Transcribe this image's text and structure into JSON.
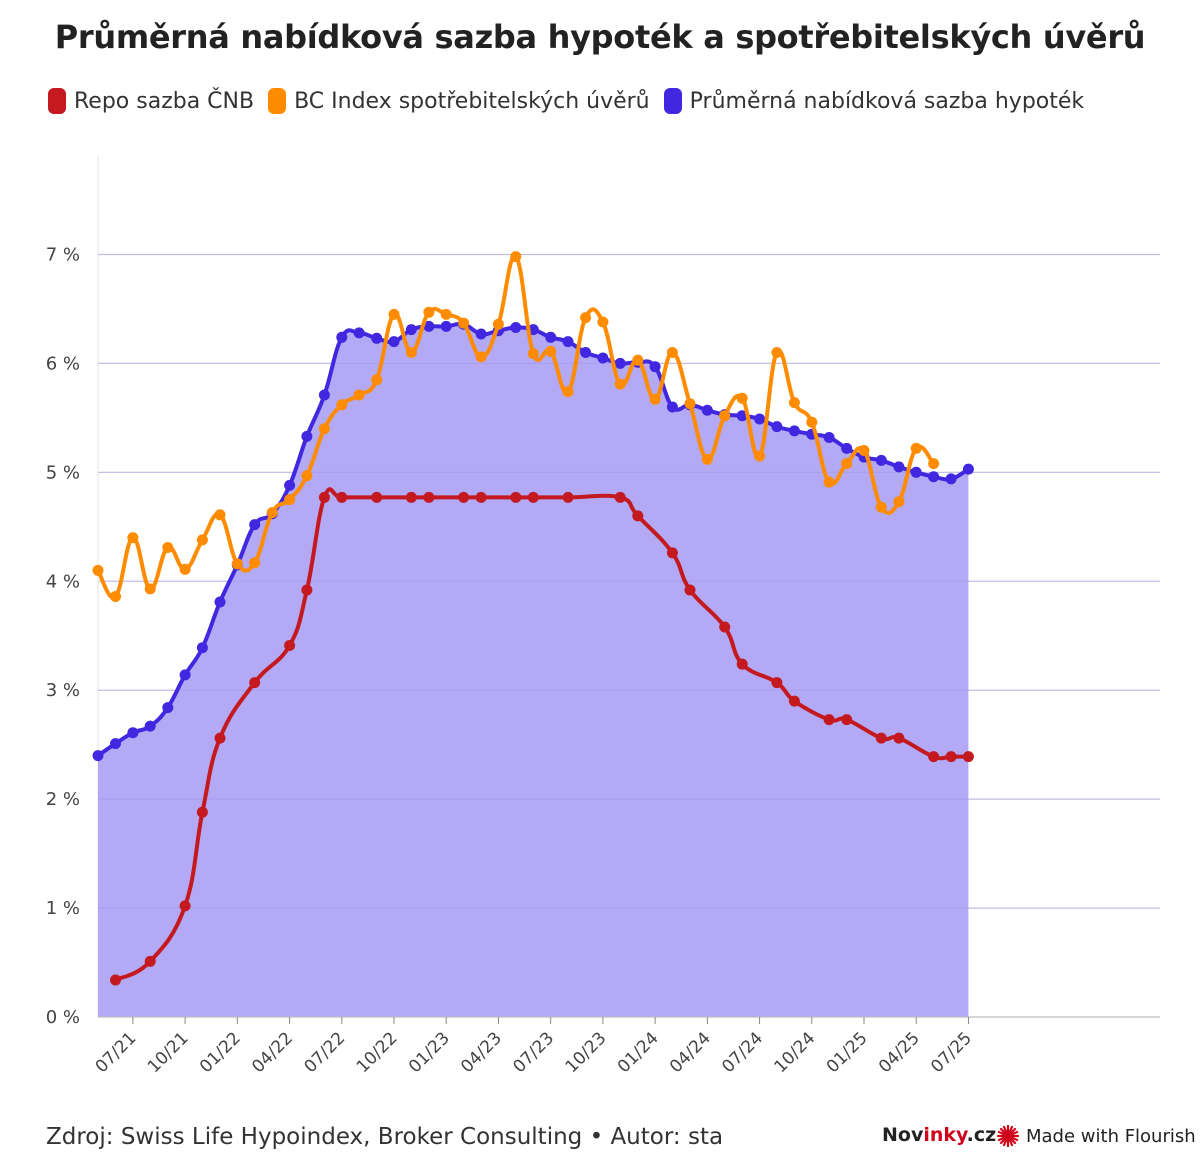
{
  "title": "Průměrná nabídková sazba hypoték a spotřebitelských úvěrů",
  "legend": [
    {
      "label": "Repo sazba ČNB",
      "color": "#c4191f"
    },
    {
      "label": "BC Index spotřebitelských úvěrů",
      "color": "#ff8c00"
    },
    {
      "label": "Průměrná nabídková sazba hypoték",
      "color": "#4127e0"
    }
  ],
  "footer": {
    "source": "Zdroj: Swiss Life Hypoindex, Broker Consulting • Autor: sta",
    "brand_prefix": "Nov",
    "brand_accent": "inky",
    "brand_suffix": ".cz",
    "flourish": "Made with Flourish"
  },
  "chart_data": {
    "type": "line",
    "title": "Průměrná nabídková sazba hypoték a spotřebitelských úvěrů",
    "xlabel": "",
    "ylabel": "",
    "x_range": [
      2021.333,
      2026.417
    ],
    "ylim": [
      0,
      7.5
    ],
    "y_ticks": [
      {
        "value": 0,
        "label": "0 %"
      },
      {
        "value": 1,
        "label": "1 %"
      },
      {
        "value": 2,
        "label": "2 %"
      },
      {
        "value": 3,
        "label": "3 %"
      },
      {
        "value": 4,
        "label": "4 %"
      },
      {
        "value": 5,
        "label": "5 %"
      },
      {
        "value": 6,
        "label": "6 %"
      },
      {
        "value": 7,
        "label": "7 %"
      }
    ],
    "x_ticks": [
      {
        "value": 2021.5,
        "label": "07/21"
      },
      {
        "value": 2021.75,
        "label": "10/21"
      },
      {
        "value": 2022.0,
        "label": "01/22"
      },
      {
        "value": 2022.25,
        "label": "04/22"
      },
      {
        "value": 2022.5,
        "label": "07/22"
      },
      {
        "value": 2022.75,
        "label": "10/22"
      },
      {
        "value": 2023.0,
        "label": "01/23"
      },
      {
        "value": 2023.25,
        "label": "04/23"
      },
      {
        "value": 2023.5,
        "label": "07/23"
      },
      {
        "value": 2023.75,
        "label": "10/23"
      },
      {
        "value": 2024.0,
        "label": "01/24"
      },
      {
        "value": 2024.25,
        "label": "04/24"
      },
      {
        "value": 2024.5,
        "label": "07/24"
      },
      {
        "value": 2024.75,
        "label": "10/24"
      },
      {
        "value": 2025.0,
        "label": "01/25"
      },
      {
        "value": 2025.25,
        "label": "04/25"
      },
      {
        "value": 2025.5,
        "label": "07/25"
      }
    ],
    "series": [
      {
        "name": "Průměrná nabídková sazba hypoték",
        "color": "#4127e0",
        "fill": "#b3a9f5",
        "points": [
          [
            2021.333,
            2.4
          ],
          [
            2021.417,
            2.51
          ],
          [
            2021.5,
            2.61
          ],
          [
            2021.583,
            2.67
          ],
          [
            2021.667,
            2.84
          ],
          [
            2021.75,
            3.14
          ],
          [
            2021.833,
            3.39
          ],
          [
            2021.917,
            3.81
          ],
          [
            2022.0,
            4.15
          ],
          [
            2022.083,
            4.52
          ],
          [
            2022.167,
            4.62
          ],
          [
            2022.25,
            4.88
          ],
          [
            2022.333,
            5.33
          ],
          [
            2022.417,
            5.71
          ],
          [
            2022.5,
            6.24
          ],
          [
            2022.583,
            6.28
          ],
          [
            2022.667,
            6.23
          ],
          [
            2022.75,
            6.2
          ],
          [
            2022.833,
            6.31
          ],
          [
            2022.917,
            6.34
          ],
          [
            2023.0,
            6.34
          ],
          [
            2023.083,
            6.36
          ],
          [
            2023.167,
            6.27
          ],
          [
            2023.25,
            6.3
          ],
          [
            2023.333,
            6.33
          ],
          [
            2023.417,
            6.31
          ],
          [
            2023.5,
            6.24
          ],
          [
            2023.583,
            6.2
          ],
          [
            2023.667,
            6.1
          ],
          [
            2023.75,
            6.05
          ],
          [
            2023.833,
            6.0
          ],
          [
            2023.917,
            6.01
          ],
          [
            2024.0,
            5.97
          ],
          [
            2024.083,
            5.6
          ],
          [
            2024.167,
            5.62
          ],
          [
            2024.25,
            5.57
          ],
          [
            2024.333,
            5.53
          ],
          [
            2024.417,
            5.52
          ],
          [
            2024.5,
            5.49
          ],
          [
            2024.583,
            5.42
          ],
          [
            2024.667,
            5.38
          ],
          [
            2024.75,
            5.35
          ],
          [
            2024.833,
            5.32
          ],
          [
            2024.917,
            5.22
          ],
          [
            2025.0,
            5.14
          ],
          [
            2025.083,
            5.11
          ],
          [
            2025.167,
            5.05
          ],
          [
            2025.25,
            5.0
          ],
          [
            2025.333,
            4.96
          ],
          [
            2025.417,
            4.94
          ],
          [
            2025.5,
            5.03
          ]
        ]
      },
      {
        "name": "BC Index spotřebitelských úvěrů",
        "color": "#ff8c00",
        "points": [
          [
            2021.333,
            4.1
          ],
          [
            2021.417,
            3.86
          ],
          [
            2021.5,
            4.4
          ],
          [
            2021.583,
            3.93
          ],
          [
            2021.667,
            4.31
          ],
          [
            2021.75,
            4.11
          ],
          [
            2021.833,
            4.38
          ],
          [
            2021.917,
            4.61
          ],
          [
            2022.0,
            4.16
          ],
          [
            2022.083,
            4.17
          ],
          [
            2022.167,
            4.63
          ],
          [
            2022.25,
            4.75
          ],
          [
            2022.333,
            4.97
          ],
          [
            2022.417,
            5.4
          ],
          [
            2022.5,
            5.62
          ],
          [
            2022.583,
            5.71
          ],
          [
            2022.667,
            5.85
          ],
          [
            2022.75,
            6.45
          ],
          [
            2022.833,
            6.1
          ],
          [
            2022.917,
            6.47
          ],
          [
            2023.0,
            6.45
          ],
          [
            2023.083,
            6.37
          ],
          [
            2023.167,
            6.06
          ],
          [
            2023.25,
            6.36
          ],
          [
            2023.333,
            6.98
          ],
          [
            2023.417,
            6.09
          ],
          [
            2023.5,
            6.11
          ],
          [
            2023.583,
            5.74
          ],
          [
            2023.667,
            6.42
          ],
          [
            2023.75,
            6.38
          ],
          [
            2023.833,
            5.81
          ],
          [
            2023.917,
            6.03
          ],
          [
            2024.0,
            5.67
          ],
          [
            2024.083,
            6.1
          ],
          [
            2024.167,
            5.63
          ],
          [
            2024.25,
            5.12
          ],
          [
            2024.333,
            5.52
          ],
          [
            2024.417,
            5.68
          ],
          [
            2024.5,
            5.15
          ],
          [
            2024.583,
            6.1
          ],
          [
            2024.667,
            5.64
          ],
          [
            2024.75,
            5.46
          ],
          [
            2024.833,
            4.91
          ],
          [
            2024.917,
            5.08
          ],
          [
            2025.0,
            5.2
          ],
          [
            2025.083,
            4.68
          ],
          [
            2025.167,
            4.73
          ],
          [
            2025.25,
            5.22
          ],
          [
            2025.333,
            5.08
          ]
        ]
      },
      {
        "name": "Repo sazba ČNB",
        "color": "#c4191f",
        "points": [
          [
            2021.417,
            0.34
          ],
          [
            2021.583,
            0.51
          ],
          [
            2021.75,
            1.02
          ],
          [
            2021.833,
            1.88
          ],
          [
            2021.917,
            2.56
          ],
          [
            2022.083,
            3.07
          ],
          [
            2022.25,
            3.41
          ],
          [
            2022.333,
            3.92
          ],
          [
            2022.417,
            4.77
          ],
          [
            2022.5,
            4.77
          ],
          [
            2022.667,
            4.77
          ],
          [
            2022.833,
            4.77
          ],
          [
            2022.917,
            4.77
          ],
          [
            2023.083,
            4.77
          ],
          [
            2023.167,
            4.77
          ],
          [
            2023.333,
            4.77
          ],
          [
            2023.417,
            4.77
          ],
          [
            2023.583,
            4.77
          ],
          [
            2023.833,
            4.77
          ],
          [
            2023.917,
            4.6
          ],
          [
            2024.083,
            4.26
          ],
          [
            2024.167,
            3.92
          ],
          [
            2024.333,
            3.58
          ],
          [
            2024.417,
            3.24
          ],
          [
            2024.583,
            3.07
          ],
          [
            2024.667,
            2.9
          ],
          [
            2024.833,
            2.73
          ],
          [
            2024.917,
            2.73
          ],
          [
            2025.083,
            2.56
          ],
          [
            2025.167,
            2.56
          ],
          [
            2025.333,
            2.39
          ],
          [
            2025.417,
            2.39
          ],
          [
            2025.5,
            2.39
          ]
        ]
      }
    ]
  }
}
